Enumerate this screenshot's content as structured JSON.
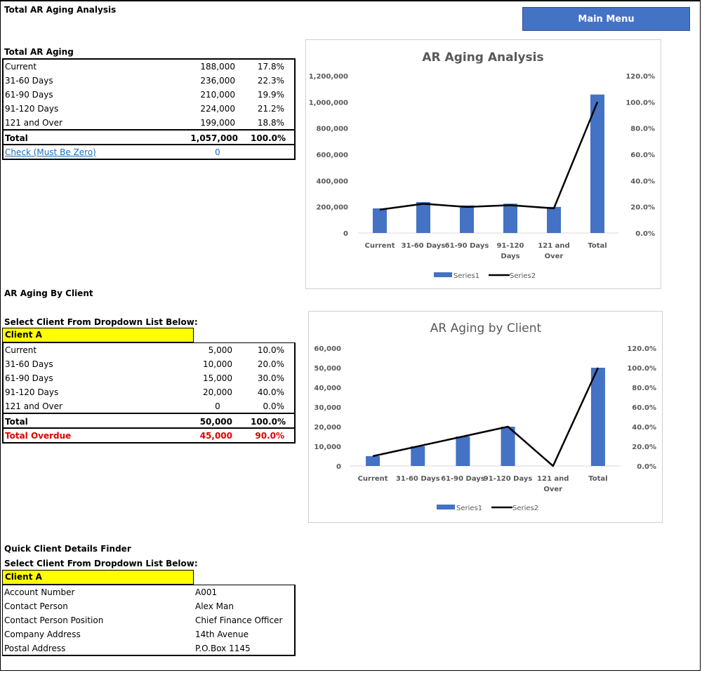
{
  "main_menu_label": "Main Menu",
  "section1": {
    "title": "Total AR Aging Analysis",
    "table_title": "Total AR Aging",
    "rows": [
      {
        "label": "Current",
        "amount": "188,000",
        "pct": "17.8%"
      },
      {
        "label": "31-60 Days",
        "amount": "236,000",
        "pct": "22.3%"
      },
      {
        "label": "61-90 Days",
        "amount": "210,000",
        "pct": "19.9%"
      },
      {
        "label": "91-120 Days",
        "amount": "224,000",
        "pct": "21.2%"
      },
      {
        "label": "121 and Over",
        "amount": "199,000",
        "pct": "18.8%"
      }
    ],
    "total": {
      "label": "Total",
      "amount": "1,057,000",
      "pct": "100.0%"
    },
    "check": {
      "label": "Check (Must Be Zero)",
      "value": "0"
    }
  },
  "section2": {
    "title": "AR Aging By Client",
    "select_prompt": "Select Client From Dropdown List Below:",
    "selected_client": "Client A",
    "rows": [
      {
        "label": "Current",
        "amount": "5,000",
        "pct": "10.0%"
      },
      {
        "label": "31-60 Days",
        "amount": "10,000",
        "pct": "20.0%"
      },
      {
        "label": "61-90 Days",
        "amount": "15,000",
        "pct": "30.0%"
      },
      {
        "label": "91-120 Days",
        "amount": "20,000",
        "pct": "40.0%"
      },
      {
        "label": "121 and Over",
        "amount": "0",
        "pct": "0.0%"
      }
    ],
    "total": {
      "label": "Total",
      "amount": "50,000",
      "pct": "100.0%"
    },
    "overdue": {
      "label": "Total Overdue",
      "amount": "45,000",
      "pct": "90.0%"
    }
  },
  "section3": {
    "title": "Quick Client Details Finder",
    "select_prompt": "Select Client From Dropdown List Below:",
    "selected_client": "Client A",
    "details": [
      {
        "label": "Account Number",
        "value": "A001"
      },
      {
        "label": "Contact Person",
        "value": "Alex Man"
      },
      {
        "label": "Contact Person Position",
        "value": "Chief Finance Officer"
      },
      {
        "label": "Company Address",
        "value": "14th Avenue"
      },
      {
        "label": "Postal Address",
        "value": "P.O.Box 1145"
      }
    ]
  },
  "colors": {
    "bar": "#4472c4",
    "line": "#000000",
    "client_highlight": "#ffff00",
    "overdue": "#e00000",
    "link": "#1f6fb5"
  },
  "chart_data": [
    {
      "type": "bar",
      "title": "AR Aging Analysis",
      "categories": [
        "Current",
        "31-60 Days",
        "61-90 Days",
        "91-120 Days",
        "121 and Over",
        "Total"
      ],
      "category_lines": [
        [
          "Current"
        ],
        [
          "31-60 Days"
        ],
        [
          "61-90 Days"
        ],
        [
          "91-120",
          "Days"
        ],
        [
          "121 and",
          "Over"
        ],
        [
          "Total"
        ]
      ],
      "series": [
        {
          "name": "Series1",
          "type": "bar",
          "axis": "left",
          "values": [
            188000,
            236000,
            210000,
            224000,
            199000,
            1057000
          ]
        },
        {
          "name": "Series2",
          "type": "line",
          "axis": "right",
          "values": [
            17.8,
            22.3,
            19.9,
            21.2,
            18.8,
            100.0
          ]
        }
      ],
      "ylim": [
        0,
        1200000
      ],
      "y_ticks": [
        "0",
        "200,000",
        "400,000",
        "600,000",
        "800,000",
        "1,000,000",
        "1,200,000"
      ],
      "y2lim": [
        0,
        120
      ],
      "y2_ticks": [
        "0.0%",
        "20.0%",
        "40.0%",
        "60.0%",
        "80.0%",
        "100.0%",
        "120.0%"
      ],
      "legend": "bottom",
      "grid": false
    },
    {
      "type": "bar",
      "title": "AR Aging by Client",
      "categories": [
        "Current",
        "31-60 Days",
        "61-90 Days",
        "91-120 Days",
        "121 and Over",
        "Total"
      ],
      "category_lines": [
        [
          "Current"
        ],
        [
          "31-60 Days"
        ],
        [
          "61-90 Days"
        ],
        [
          "91-120 Days"
        ],
        [
          "121 and",
          "Over"
        ],
        [
          "Total"
        ]
      ],
      "series": [
        {
          "name": "Series1",
          "type": "bar",
          "axis": "left",
          "values": [
            5000,
            10000,
            15000,
            20000,
            0,
            50000
          ]
        },
        {
          "name": "Series2",
          "type": "line",
          "axis": "right",
          "values": [
            10.0,
            20.0,
            30.0,
            40.0,
            0.0,
            100.0
          ]
        }
      ],
      "ylim": [
        0,
        60000
      ],
      "y_ticks": [
        "0",
        "10,000",
        "20,000",
        "30,000",
        "40,000",
        "50,000",
        "60,000"
      ],
      "y2lim": [
        0,
        120
      ],
      "y2_ticks": [
        "0.0%",
        "20.0%",
        "40.0%",
        "60.0%",
        "80.0%",
        "100.0%",
        "120.0%"
      ],
      "legend": "bottom",
      "grid": false
    }
  ]
}
